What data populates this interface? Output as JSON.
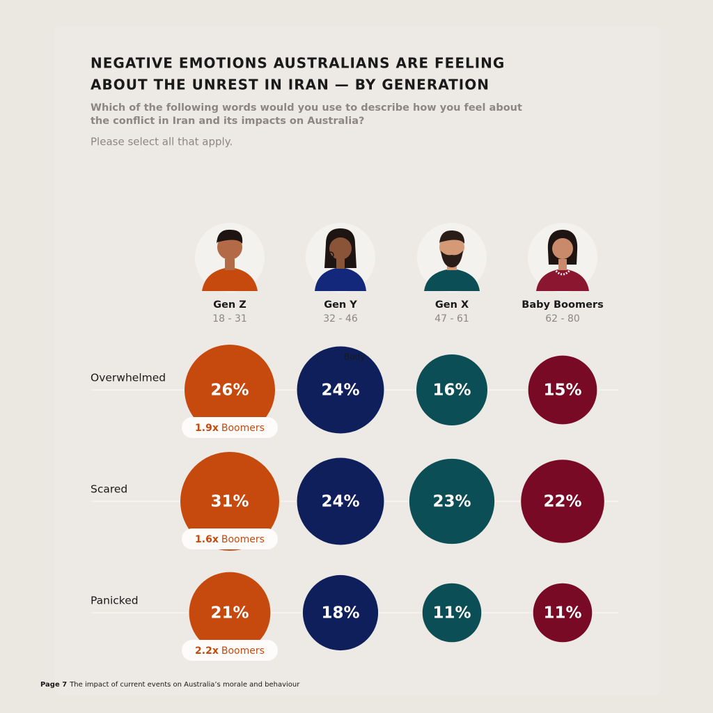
{
  "chart_data": {
    "type": "bubble",
    "title": [
      "NEGATIVE EMOTIONS AUSTRALIANS ARE FEELING",
      "ABOUT THE UNREST IN IRAN — BY GENERATION"
    ],
    "subtitle": [
      "Which of the following words would you use to describe how you feel about",
      "the conflict in Iran and its impacts on Australia?"
    ],
    "note": "Please select all that apply.",
    "categories": [
      "Overwhelmed",
      "Scared",
      "Panicked"
    ],
    "series": [
      {
        "name": "Gen Z",
        "age": "18 - 31",
        "color": "#c64a0d",
        "values": [
          26,
          31,
          21
        ],
        "value_labels": [
          "26%",
          "31%",
          "21%"
        ]
      },
      {
        "name": "Gen Y",
        "age": "32 - 46",
        "color": "#0e1f5b",
        "values": [
          24,
          24,
          18
        ],
        "value_labels": [
          "24%",
          "24%",
          "18%"
        ]
      },
      {
        "name": "Gen X",
        "age": "47 - 61",
        "color": "#0c4e55",
        "values": [
          16,
          23,
          11
        ],
        "value_labels": [
          "16%",
          "23%",
          "11%"
        ]
      },
      {
        "name": "Baby Boomers",
        "age": "62 - 80",
        "color": "#780a25",
        "values": [
          15,
          22,
          11
        ],
        "value_labels": [
          "15%",
          "22%",
          "11%"
        ]
      }
    ],
    "comparisons": [
      "1.9x",
      "1.6x",
      "2.2x"
    ],
    "comparison_target": "Boomers",
    "overlay_text": "Body",
    "footer_page": "Page 7",
    "footer_text": "The impact of current events on Australia’s morale and behaviour"
  }
}
